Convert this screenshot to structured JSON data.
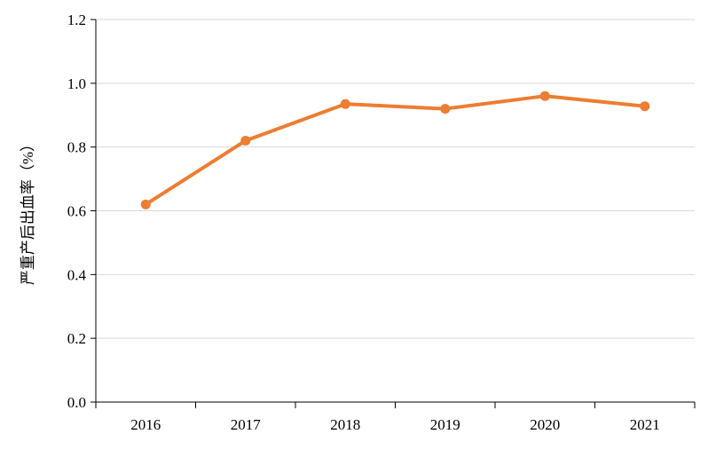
{
  "chart_data": {
    "type": "line",
    "title": "",
    "xlabel": "",
    "ylabel": "严重产后出血率（%）",
    "categories": [
      "2016",
      "2017",
      "2018",
      "2019",
      "2020",
      "2021"
    ],
    "series": [
      {
        "values": [
          0.62,
          0.82,
          0.935,
          0.92,
          0.96,
          0.928
        ],
        "color": "#ED7D31"
      }
    ],
    "ylim": [
      0,
      1.2
    ],
    "yticks": [
      "0.0",
      "0.2",
      "0.4",
      "0.6",
      "0.8",
      "1.0",
      "1.2"
    ],
    "grid": "horizontal",
    "legend": "none",
    "gridline_color": "#D9D9D9",
    "axis_color": "#000000"
  }
}
